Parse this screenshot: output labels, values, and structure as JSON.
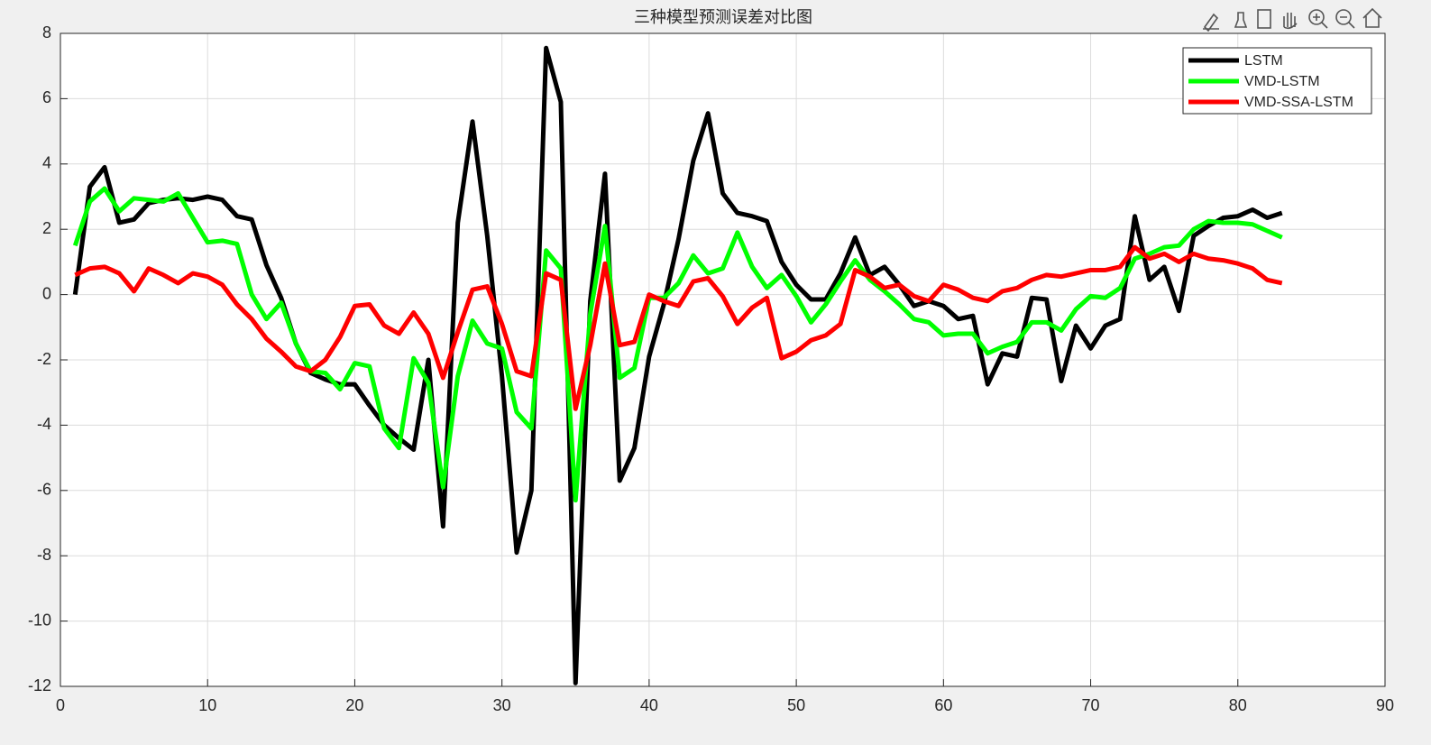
{
  "chart_data": {
    "type": "line",
    "title": "三种模型预测误差对比图",
    "x": [
      1,
      2,
      3,
      4,
      5,
      6,
      7,
      8,
      9,
      10,
      11,
      12,
      13,
      14,
      15,
      16,
      17,
      18,
      19,
      20,
      21,
      22,
      23,
      24,
      25,
      26,
      27,
      28,
      29,
      30,
      31,
      32,
      33,
      34,
      35,
      36,
      37,
      38,
      39,
      40,
      41,
      42,
      43,
      44,
      45,
      46,
      47,
      48,
      49,
      50,
      51,
      52,
      53,
      54,
      55,
      56,
      57,
      58,
      59,
      60,
      61,
      62,
      63,
      64,
      65,
      66,
      67,
      68,
      69,
      70,
      71,
      72,
      73,
      74,
      75,
      76,
      77,
      78,
      79,
      80,
      81,
      82,
      83
    ],
    "series": [
      {
        "name": "LSTM",
        "color": "#000000",
        "values": [
          0,
          3.3,
          3.9,
          2.2,
          2.3,
          2.8,
          2.9,
          2.95,
          2.9,
          3.0,
          2.9,
          2.4,
          2.3,
          0.9,
          -0.1,
          -1.5,
          -2.4,
          -2.6,
          -2.75,
          -2.75,
          -3.4,
          -4.0,
          -4.4,
          -4.75,
          -2.0,
          -7.1,
          2.2,
          5.3,
          1.8,
          -2.5,
          -7.9,
          -6.0,
          7.55,
          5.9,
          -11.9,
          -0.2,
          3.7,
          -5.7,
          -4.7,
          -1.9,
          -0.3,
          1.7,
          4.1,
          5.55,
          3.1,
          2.5,
          2.4,
          2.25,
          1.0,
          0.3,
          -0.15,
          -0.15,
          0.65,
          1.75,
          0.6,
          0.85,
          0.3,
          -0.35,
          -0.2,
          -0.35,
          -0.75,
          -0.65,
          -2.75,
          -1.8,
          -1.9,
          -0.1,
          -0.15,
          -2.65,
          -0.95,
          -1.65,
          -0.95,
          -0.75,
          2.4,
          0.45,
          0.85,
          -0.5,
          1.8,
          2.1,
          2.35,
          2.4,
          2.6,
          2.35,
          2.5
        ]
      },
      {
        "name": "VMD-LSTM",
        "color": "#00ff00",
        "values": [
          1.5,
          2.85,
          3.25,
          2.55,
          2.95,
          2.9,
          2.85,
          3.1,
          2.35,
          1.6,
          1.65,
          1.55,
          0.0,
          -0.75,
          -0.25,
          -1.5,
          -2.35,
          -2.4,
          -2.9,
          -2.1,
          -2.2,
          -4.1,
          -4.7,
          -1.95,
          -2.7,
          -5.9,
          -2.5,
          -0.8,
          -1.5,
          -1.65,
          -3.6,
          -4.1,
          1.35,
          0.8,
          -6.3,
          -0.6,
          2.1,
          -2.55,
          -2.25,
          -0.1,
          -0.1,
          0.35,
          1.2,
          0.65,
          0.8,
          1.9,
          0.85,
          0.2,
          0.6,
          -0.05,
          -0.85,
          -0.3,
          0.4,
          1.05,
          0.45,
          0.1,
          -0.3,
          -0.75,
          -0.85,
          -1.25,
          -1.2,
          -1.2,
          -1.8,
          -1.6,
          -1.45,
          -0.85,
          -0.85,
          -1.1,
          -0.45,
          -0.05,
          -0.1,
          0.2,
          1.1,
          1.25,
          1.45,
          1.5,
          2.0,
          2.25,
          2.2,
          2.2,
          2.15,
          1.95,
          1.75
        ]
      },
      {
        "name": "VMD-SSA-LSTM",
        "color": "#ff0000",
        "values": [
          0.6,
          0.8,
          0.85,
          0.65,
          0.1,
          0.8,
          0.6,
          0.35,
          0.65,
          0.55,
          0.3,
          -0.3,
          -0.75,
          -1.35,
          -1.75,
          -2.2,
          -2.35,
          -2.0,
          -1.3,
          -0.35,
          -0.3,
          -0.95,
          -1.2,
          -0.55,
          -1.2,
          -2.55,
          -1.15,
          0.15,
          0.25,
          -0.9,
          -2.35,
          -2.5,
          0.65,
          0.45,
          -3.5,
          -1.55,
          0.95,
          -1.55,
          -1.45,
          0.0,
          -0.2,
          -0.35,
          0.4,
          0.5,
          -0.05,
          -0.9,
          -0.4,
          -0.1,
          -1.95,
          -1.75,
          -1.4,
          -1.25,
          -0.9,
          0.75,
          0.55,
          0.2,
          0.3,
          -0.05,
          -0.2,
          0.3,
          0.15,
          -0.1,
          -0.2,
          0.1,
          0.2,
          0.45,
          0.6,
          0.55,
          0.65,
          0.75,
          0.75,
          0.85,
          1.45,
          1.1,
          1.25,
          1.0,
          1.25,
          1.1,
          1.05,
          0.95,
          0.8,
          0.45,
          0.35
        ]
      }
    ],
    "xlim": [
      0,
      90
    ],
    "xticks": [
      0,
      10,
      20,
      30,
      40,
      50,
      60,
      70,
      80,
      90
    ],
    "ylim": [
      -12,
      8
    ],
    "yticks": [
      -12,
      -10,
      -8,
      -6,
      -4,
      -2,
      0,
      2,
      4,
      6,
      8
    ],
    "grid": true,
    "legend": "northeast"
  }
}
